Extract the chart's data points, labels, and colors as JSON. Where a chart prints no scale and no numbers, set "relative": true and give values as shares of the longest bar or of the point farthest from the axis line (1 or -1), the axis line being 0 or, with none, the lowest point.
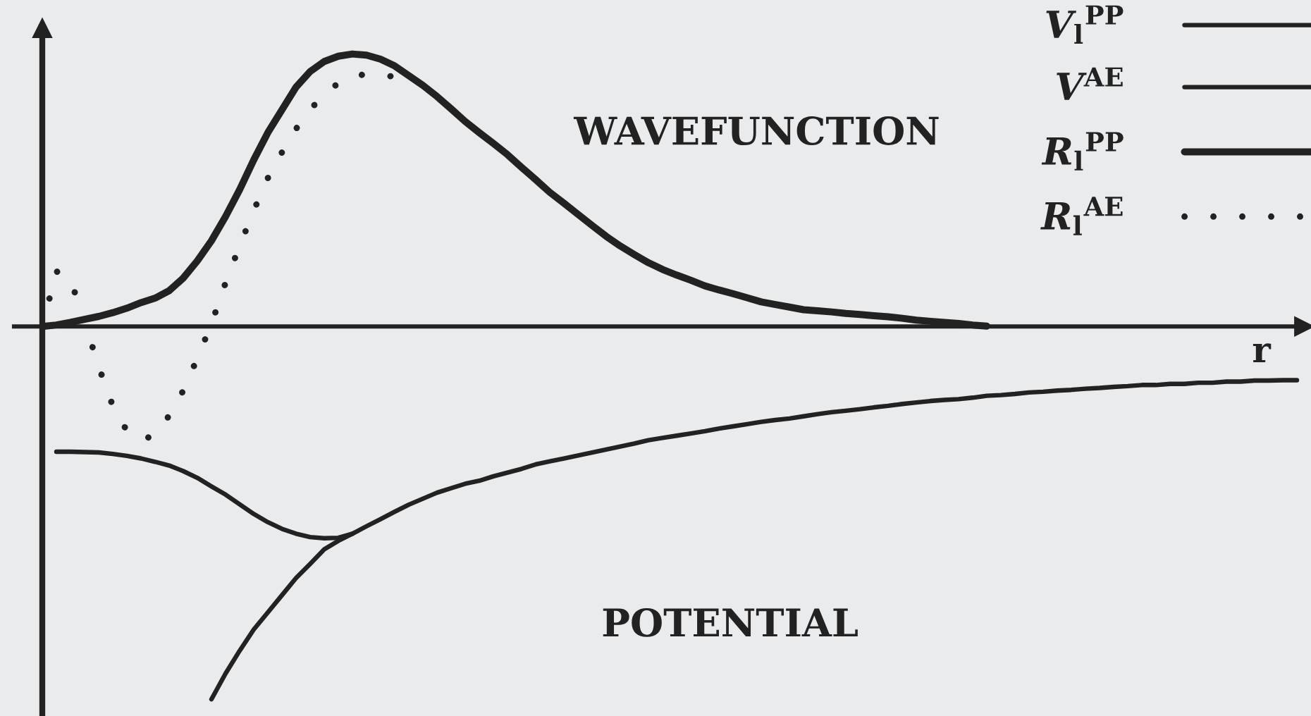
{
  "chart_data": {
    "type": "line",
    "relative": true,
    "xlabel": "r",
    "legend": "top right",
    "marker": "none",
    "annotations": [
      "WAVEFUNCTION",
      "POTENTIAL"
    ],
    "categories": [
      null,
      null,
      null,
      null,
      null,
      null,
      null,
      null,
      null,
      null,
      null,
      null,
      null,
      null,
      null,
      null,
      null,
      null,
      null,
      null,
      null,
      null,
      null,
      null,
      null,
      null,
      null,
      null,
      null,
      null,
      null,
      null,
      null,
      null,
      null,
      null,
      null,
      null,
      null,
      null,
      null,
      null,
      null,
      null,
      null,
      null,
      null,
      null,
      null,
      null,
      null,
      null,
      null,
      null,
      null,
      null,
      null,
      null,
      null,
      null,
      null,
      null,
      null,
      null,
      null,
      null,
      null,
      null,
      null,
      null,
      null,
      null,
      null,
      null,
      null,
      null,
      null,
      null,
      null,
      null,
      null,
      null,
      null,
      null,
      null,
      null,
      null,
      null,
      null,
      null
    ],
    "series": [
      {
        "name": "V$_{l}$$^{PP}$",
        "color": "#222222",
        "line_style": "solid",
        "values": [
          null,
          -0.336,
          -0.336,
          -0.337,
          -0.338,
          -0.342,
          -0.347,
          -0.354,
          -0.363,
          -0.373,
          -0.388,
          -0.406,
          -0.429,
          -0.451,
          -0.477,
          -0.503,
          -0.525,
          -0.543,
          -0.556,
          -0.565,
          -0.568,
          -0.567,
          -0.556,
          null,
          null,
          null,
          null,
          null,
          null,
          null,
          null,
          null,
          null,
          null,
          null,
          null,
          null,
          null,
          null,
          null,
          null,
          null,
          null,
          null,
          null,
          null,
          null,
          null,
          null,
          null,
          null,
          null,
          null,
          null,
          null,
          null,
          null,
          null,
          null,
          null,
          null,
          null,
          null,
          null,
          null,
          null,
          null,
          null,
          null,
          null,
          null,
          null,
          null,
          null,
          null,
          null,
          null,
          null,
          null,
          null,
          null,
          null,
          null,
          null,
          null,
          null,
          null,
          null,
          null,
          null
        ]
      },
      {
        "name": "V$^{AE}$",
        "color": "#222222",
        "line_style": "solid",
        "values": [
          null,
          null,
          null,
          null,
          null,
          null,
          null,
          null,
          null,
          null,
          null,
          null,
          -1,
          -0.931,
          -0.87,
          -0.813,
          -0.767,
          -0.721,
          -0.675,
          -0.637,
          -0.598,
          -0.575,
          -0.556,
          -0.536,
          -0.517,
          -0.497,
          -0.478,
          -0.462,
          -0.446,
          -0.434,
          -0.422,
          -0.414,
          -0.402,
          -0.392,
          -0.382,
          -0.37,
          -0.362,
          -0.354,
          -0.346,
          -0.338,
          -0.33,
          -0.322,
          -0.314,
          -0.305,
          -0.299,
          -0.293,
          -0.287,
          -0.281,
          -0.274,
          -0.268,
          -0.262,
          -0.256,
          -0.251,
          -0.247,
          -0.241,
          -0.235,
          -0.23,
          -0.226,
          -0.222,
          -0.217,
          -0.213,
          -0.208,
          -0.204,
          -0.2,
          -0.197,
          -0.195,
          -0.191,
          -0.186,
          -0.184,
          -0.181,
          -0.177,
          -0.175,
          -0.172,
          -0.17,
          -0.167,
          -0.165,
          -0.162,
          -0.16,
          -0.157,
          -0.157,
          -0.154,
          -0.154,
          -0.151,
          -0.151,
          -0.148,
          -0.148,
          -0.145,
          -0.145,
          -0.144,
          -0.144
        ]
      },
      {
        "name": "R$_{l}$$^{PP}$",
        "color": "#222222",
        "line_style": "solid",
        "values": [
          0,
          0.004,
          0.011,
          0.019,
          0.027,
          0.037,
          0.049,
          0.064,
          0.076,
          0.096,
          0.13,
          0.176,
          0.23,
          0.295,
          0.367,
          0.447,
          0.52,
          0.581,
          0.642,
          0.684,
          0.711,
          0.725,
          0.731,
          0.728,
          0.717,
          0.699,
          0.673,
          0.647,
          0.617,
          0.584,
          0.55,
          0.52,
          0.491,
          0.461,
          0.427,
          0.394,
          0.36,
          0.331,
          0.301,
          0.271,
          0.242,
          0.216,
          0.193,
          0.171,
          0.153,
          0.138,
          0.124,
          0.109,
          0.098,
          0.088,
          0.077,
          0.066,
          0.059,
          0.052,
          0.045,
          0.042,
          0.039,
          0.035,
          0.032,
          0.029,
          0.026,
          0.022,
          0.017,
          0.014,
          0.011,
          0.008,
          0.004,
          0.001,
          null,
          null,
          null,
          null,
          null,
          null,
          null,
          null,
          null,
          null,
          null,
          null,
          null,
          null,
          null,
          null,
          null,
          null,
          null,
          null,
          null,
          null
        ]
      },
      {
        "name": "R$_{l}$$^{AE}$",
        "color": "#222222",
        "line_style": "dotted",
        "values": [
          0,
          0.148,
          0.126,
          0.013,
          -0.108,
          -0.213,
          -0.28,
          -0.305,
          -0.291,
          -0.239,
          -0.172,
          -0.085,
          0.007,
          0.117,
          0.216,
          0.311,
          0.398,
          0.467,
          0.53,
          0.582,
          0.622,
          0.653,
          0.671,
          0.677,
          0.677,
          0.669,
          0.658,
          null,
          null,
          null,
          null,
          null,
          null,
          null,
          null,
          null,
          null,
          null,
          null,
          null,
          null,
          null,
          null,
          null,
          null,
          null,
          null,
          null,
          null,
          null,
          null,
          null,
          null,
          null,
          null,
          null,
          null,
          null,
          null,
          null,
          null,
          null,
          null,
          null,
          null,
          null,
          null,
          null,
          null,
          null,
          null,
          null,
          null,
          null,
          null,
          null,
          null,
          null,
          null,
          null,
          null,
          null,
          null,
          null,
          null,
          null,
          null,
          null,
          null,
          null
        ]
      }
    ]
  }
}
